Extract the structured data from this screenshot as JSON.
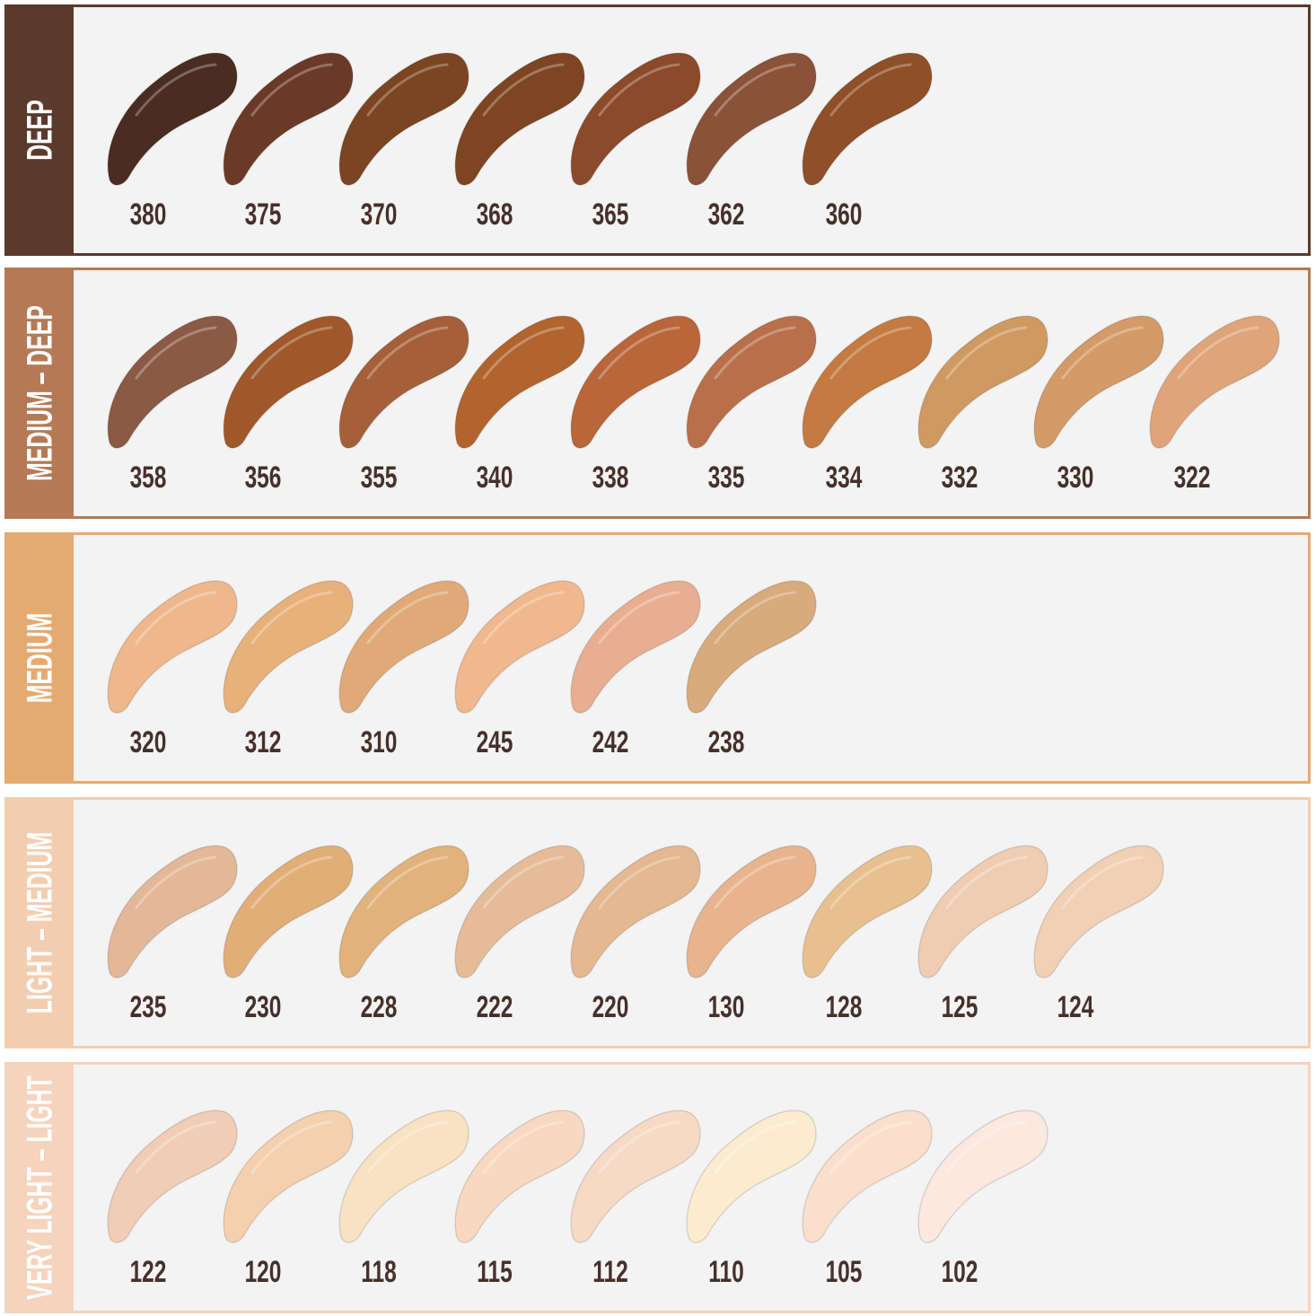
{
  "groups": [
    {
      "label": "DEEP",
      "band_color": "#5a3a2c",
      "shades": [
        {
          "number": "380",
          "color": "#4a2c22"
        },
        {
          "number": "375",
          "color": "#6b3a26"
        },
        {
          "number": "370",
          "color": "#7a4520"
        },
        {
          "number": "368",
          "color": "#7e4522"
        },
        {
          "number": "365",
          "color": "#8b4a2a"
        },
        {
          "number": "362",
          "color": "#8a5238"
        },
        {
          "number": "360",
          "color": "#8f4f28"
        }
      ]
    },
    {
      "label": "MEDIUM – DEEP",
      "band_color": "#b57a55",
      "shades": [
        {
          "number": "358",
          "color": "#8a5a44"
        },
        {
          "number": "356",
          "color": "#a0582a"
        },
        {
          "number": "355",
          "color": "#a5603a"
        },
        {
          "number": "340",
          "color": "#b2642f"
        },
        {
          "number": "338",
          "color": "#b9663a"
        },
        {
          "number": "335",
          "color": "#b9704a"
        },
        {
          "number": "334",
          "color": "#c47a40"
        },
        {
          "number": "332",
          "color": "#cf9a62"
        },
        {
          "number": "330",
          "color": "#d49a68"
        },
        {
          "number": "322",
          "color": "#e0a47a"
        }
      ]
    },
    {
      "label": "MEDIUM",
      "band_color": "#e5aa70",
      "shades": [
        {
          "number": "320",
          "color": "#eeb88c"
        },
        {
          "number": "312",
          "color": "#e8b07a"
        },
        {
          "number": "310",
          "color": "#e0aa78"
        },
        {
          "number": "245",
          "color": "#f0b88e"
        },
        {
          "number": "242",
          "color": "#e8ae92"
        },
        {
          "number": "238",
          "color": "#d8aa7c"
        }
      ]
    },
    {
      "label": "LIGHT – MEDIUM",
      "band_color": "#f3cdb0",
      "shades": [
        {
          "number": "235",
          "color": "#e3b898"
        },
        {
          "number": "230",
          "color": "#e2ae78"
        },
        {
          "number": "228",
          "color": "#e2b27c"
        },
        {
          "number": "222",
          "color": "#e6bc98"
        },
        {
          "number": "220",
          "color": "#e4b890"
        },
        {
          "number": "130",
          "color": "#e8b48e"
        },
        {
          "number": "128",
          "color": "#e8c090"
        },
        {
          "number": "125",
          "color": "#f0cdb2"
        },
        {
          "number": "124",
          "color": "#f2d0b4"
        }
      ]
    },
    {
      "label": "VERY LIGHT – LIGHT",
      "band_color": "#f6d3bd",
      "shades": [
        {
          "number": "122",
          "color": "#f0cdb4"
        },
        {
          "number": "120",
          "color": "#f4d0ae"
        },
        {
          "number": "118",
          "color": "#f8e2c2"
        },
        {
          "number": "115",
          "color": "#f8d8c0"
        },
        {
          "number": "112",
          "color": "#f6dac6"
        },
        {
          "number": "110",
          "color": "#fbecd0"
        },
        {
          "number": "105",
          "color": "#fae0cc"
        },
        {
          "number": "102",
          "color": "#fbe8de"
        }
      ]
    }
  ]
}
